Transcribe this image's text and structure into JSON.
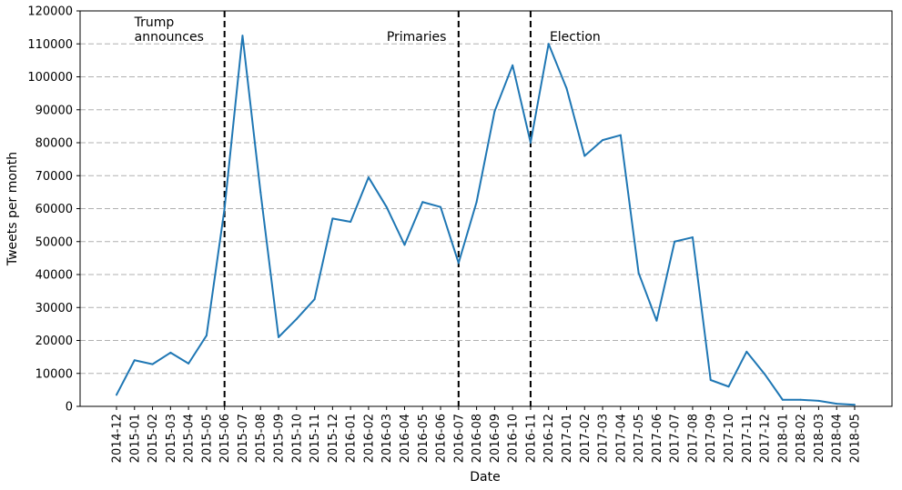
{
  "chart_data": {
    "type": "line",
    "xlabel": "Date",
    "ylabel": "Tweets per month",
    "ylim": [
      0,
      120000
    ],
    "yticks": [
      0,
      10000,
      20000,
      30000,
      40000,
      50000,
      60000,
      70000,
      80000,
      90000,
      100000,
      110000,
      120000
    ],
    "grid": "horizontal dashed",
    "line_color": "#1f77b4",
    "categories": [
      "2014-12",
      "2015-01",
      "2015-02",
      "2015-03",
      "2015-04",
      "2015-05",
      "2015-06",
      "2015-07",
      "2015-08",
      "2015-09",
      "2015-10",
      "2015-11",
      "2015-12",
      "2016-01",
      "2016-02",
      "2016-03",
      "2016-04",
      "2016-05",
      "2016-06",
      "2016-07",
      "2016-08",
      "2016-09",
      "2016-10",
      "2016-11",
      "2016-12",
      "2017-01",
      "2017-02",
      "2017-03",
      "2017-04",
      "2017-05",
      "2017-06",
      "2017-07",
      "2017-08",
      "2017-09",
      "2017-10",
      "2017-11",
      "2017-12",
      "2018-01",
      "2018-02",
      "2018-03",
      "2018-04",
      "2018-05"
    ],
    "series": [
      {
        "values": [
          3500,
          14000,
          12800,
          16300,
          13000,
          21500,
          60000,
          112500,
          65000,
          21000,
          26500,
          32500,
          57000,
          56000,
          69500,
          60500,
          49000,
          62000,
          60500,
          43500,
          62000,
          89500,
          103500,
          80000,
          110000,
          96500,
          76000,
          80800,
          82300,
          40500,
          26000,
          50000,
          51300,
          8000,
          6000,
          16600,
          9800,
          2000,
          2000,
          1700,
          800,
          500
        ]
      }
    ],
    "annotations": [
      {
        "category": "2015-06",
        "lines": [
          "Trump",
          "announces"
        ]
      },
      {
        "category": "2016-07",
        "lines": [
          "Primaries"
        ]
      },
      {
        "category": "2016-11",
        "lines": [
          "Election"
        ]
      }
    ]
  }
}
